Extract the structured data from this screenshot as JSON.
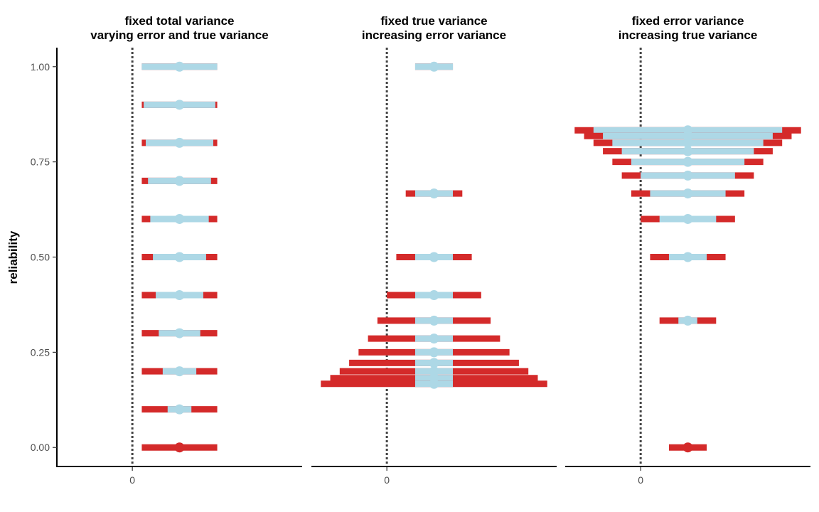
{
  "chart_data": {
    "type": "range_errorbar_facets",
    "ylabel": "reliability",
    "ylim": [
      -0.05,
      1.05
    ],
    "yticks": [
      0.0,
      0.25,
      0.5,
      0.75,
      1.0
    ],
    "ytick_labels": [
      "0.00",
      "0.25",
      "0.50",
      "0.75",
      "1.00"
    ],
    "xtick_values": [
      0
    ],
    "xtick_labels": [
      "0"
    ],
    "reference_line": {
      "x": 0,
      "style": "dotted"
    },
    "colors": {
      "error_interval": "#d42a2a",
      "true_interval": "#add8e6",
      "axis": "#000000",
      "reference": "#444444"
    },
    "panels": [
      {
        "title_line1": "fixed total variance",
        "title_line2": "varying error and true variance",
        "xlim": [
          -4,
          9
        ],
        "center": 2.5,
        "rows": [
          {
            "reliability": 0.0,
            "true_sd": 0.0,
            "total_sd": 2.0
          },
          {
            "reliability": 0.1,
            "true_sd": 0.63,
            "total_sd": 2.0
          },
          {
            "reliability": 0.2,
            "true_sd": 0.89,
            "total_sd": 2.0
          },
          {
            "reliability": 0.3,
            "true_sd": 1.1,
            "total_sd": 2.0
          },
          {
            "reliability": 0.4,
            "true_sd": 1.26,
            "total_sd": 2.0
          },
          {
            "reliability": 0.5,
            "true_sd": 1.41,
            "total_sd": 2.0
          },
          {
            "reliability": 0.6,
            "true_sd": 1.55,
            "total_sd": 2.0
          },
          {
            "reliability": 0.7,
            "true_sd": 1.67,
            "total_sd": 2.0
          },
          {
            "reliability": 0.8,
            "true_sd": 1.79,
            "total_sd": 2.0
          },
          {
            "reliability": 0.9,
            "true_sd": 1.9,
            "total_sd": 2.0
          },
          {
            "reliability": 1.0,
            "true_sd": 2.0,
            "total_sd": 2.0
          }
        ]
      },
      {
        "title_line1": "fixed true variance",
        "title_line2": "increasing error variance",
        "xlim": [
          -4,
          9
        ],
        "center": 2.5,
        "rows": [
          {
            "reliability": 1.0,
            "true_sd": 1.0,
            "total_sd": 1.0
          },
          {
            "reliability": 0.667,
            "true_sd": 1.0,
            "total_sd": 1.5
          },
          {
            "reliability": 0.5,
            "true_sd": 1.0,
            "total_sd": 2.0
          },
          {
            "reliability": 0.4,
            "true_sd": 1.0,
            "total_sd": 2.5
          },
          {
            "reliability": 0.333,
            "true_sd": 1.0,
            "total_sd": 3.0
          },
          {
            "reliability": 0.286,
            "true_sd": 1.0,
            "total_sd": 3.5
          },
          {
            "reliability": 0.25,
            "true_sd": 1.0,
            "total_sd": 4.0
          },
          {
            "reliability": 0.222,
            "true_sd": 1.0,
            "total_sd": 4.5
          },
          {
            "reliability": 0.2,
            "true_sd": 1.0,
            "total_sd": 5.0
          },
          {
            "reliability": 0.182,
            "true_sd": 1.0,
            "total_sd": 5.5
          },
          {
            "reliability": 0.167,
            "true_sd": 1.0,
            "total_sd": 6.0
          }
        ]
      },
      {
        "title_line1": "fixed error variance",
        "title_line2": "increasing true variance",
        "xlim": [
          -4,
          9
        ],
        "center": 2.5,
        "rows": [
          {
            "reliability": 0.0,
            "true_sd": 0.0,
            "total_sd": 1.0
          },
          {
            "reliability": 0.333,
            "true_sd": 0.5,
            "total_sd": 1.5
          },
          {
            "reliability": 0.5,
            "true_sd": 1.0,
            "total_sd": 2.0
          },
          {
            "reliability": 0.6,
            "true_sd": 1.5,
            "total_sd": 2.5
          },
          {
            "reliability": 0.667,
            "true_sd": 2.0,
            "total_sd": 3.0
          },
          {
            "reliability": 0.714,
            "true_sd": 2.5,
            "total_sd": 3.5
          },
          {
            "reliability": 0.75,
            "true_sd": 3.0,
            "total_sd": 4.0
          },
          {
            "reliability": 0.778,
            "true_sd": 3.5,
            "total_sd": 4.5
          },
          {
            "reliability": 0.8,
            "true_sd": 4.0,
            "total_sd": 5.0
          },
          {
            "reliability": 0.818,
            "true_sd": 4.5,
            "total_sd": 5.5
          },
          {
            "reliability": 0.833,
            "true_sd": 5.0,
            "total_sd": 6.0
          }
        ]
      }
    ]
  }
}
